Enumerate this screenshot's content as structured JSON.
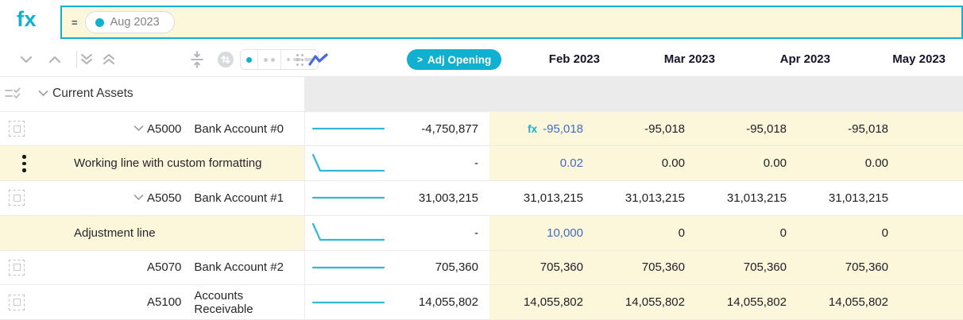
{
  "colors": {
    "accent": "#10b0d0",
    "spark": "#33b7d8",
    "fblue": "#3f6cc8",
    "cream": "#fcf6db",
    "band": "#ebebeb",
    "chartblue": "#4a66e0"
  },
  "formula_bar": {
    "fx_label": "fx",
    "equals_sign": "=",
    "token_label": "Aug 2023"
  },
  "toolbar": {
    "icons": [
      "chevron-down",
      "chevron-up",
      "double-chevron-down",
      "double-chevron-up",
      "align-vertical-center",
      "swap-vertical-circle",
      "density-dot",
      "density-dots",
      "density-dot-dashes",
      "drag-grip",
      "line-chart"
    ],
    "adj_opening_chevron": ">",
    "adj_opening_label": "Adj Opening"
  },
  "column_headers": [
    "Feb 2023",
    "Mar 2023",
    "Apr 2023",
    "May 2023"
  ],
  "group_row": {
    "label": "Current Assets"
  },
  "fx_cell_prefix": "fx",
  "rows": [
    {
      "code": "A5000",
      "name": "Bank Account #0",
      "expandable": true,
      "left_icon": "drag-handle",
      "label_highlight": false,
      "sparkline": "flat",
      "summary": "-4,750,877",
      "months_highlight": true,
      "cells": [
        {
          "value": "-95,018",
          "editable": true,
          "fx_badge": true
        },
        {
          "value": "-95,018"
        },
        {
          "value": "-95,018"
        },
        {
          "value": "-95,018"
        }
      ]
    },
    {
      "code": "",
      "name": "Working line with custom formatting",
      "expandable": false,
      "left_icon": "kebab",
      "label_highlight": true,
      "sparkline": "drop",
      "summary": "-",
      "months_highlight": true,
      "cells": [
        {
          "value": "0.02",
          "editable": true
        },
        {
          "value": "0.00"
        },
        {
          "value": "0.00"
        },
        {
          "value": "0.00"
        }
      ]
    },
    {
      "code": "A5050",
      "name": "Bank Account #1",
      "expandable": true,
      "left_icon": "drag-handle",
      "label_highlight": false,
      "sparkline": "flat",
      "summary": "31,003,215",
      "months_highlight": false,
      "cells": [
        {
          "value": "31,013,215"
        },
        {
          "value": "31,013,215"
        },
        {
          "value": "31,013,215"
        },
        {
          "value": "31,013,215"
        }
      ]
    },
    {
      "code": "",
      "name": "Adjustment line",
      "expandable": false,
      "left_icon": "none",
      "label_highlight": true,
      "sparkline": "drop",
      "summary": "-",
      "months_highlight": true,
      "cells": [
        {
          "value": "10,000",
          "editable": true
        },
        {
          "value": "0"
        },
        {
          "value": "0"
        },
        {
          "value": "0"
        }
      ]
    },
    {
      "code": "A5070",
      "name": "Bank Account #2",
      "expandable": false,
      "left_icon": "drag-handle",
      "label_highlight": false,
      "sparkline": "flat",
      "summary": "705,360",
      "months_highlight": true,
      "cells": [
        {
          "value": "705,360"
        },
        {
          "value": "705,360"
        },
        {
          "value": "705,360"
        },
        {
          "value": "705,360"
        }
      ]
    },
    {
      "code": "A5100",
      "name": "Accounts Receivable",
      "expandable": false,
      "left_icon": "drag-handle",
      "label_highlight": false,
      "sparkline": "flat",
      "summary": "14,055,802",
      "months_highlight": true,
      "cells": [
        {
          "value": "14,055,802"
        },
        {
          "value": "14,055,802"
        },
        {
          "value": "14,055,802"
        },
        {
          "value": "14,055,802"
        }
      ]
    }
  ]
}
